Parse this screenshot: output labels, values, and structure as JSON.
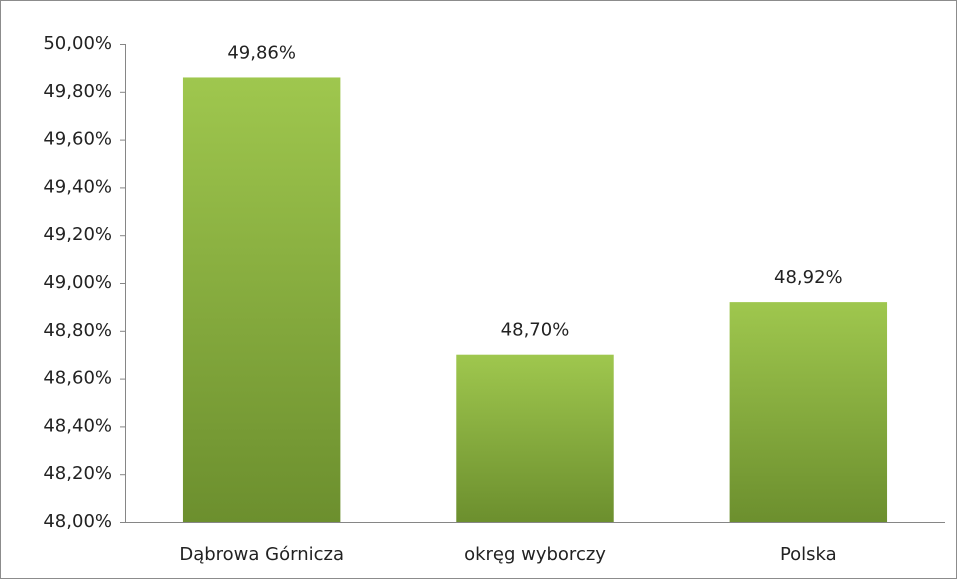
{
  "chart_data": {
    "type": "bar",
    "categories": [
      "Dąbrowa Górnicza",
      "okręg wyborczy",
      "Polska"
    ],
    "values": [
      49.86,
      48.7,
      48.92
    ],
    "value_labels": [
      "49,86%",
      "48,70%",
      "48,92%"
    ],
    "color": [
      "#9fc74e",
      "#6c8f2e"
    ],
    "ylim": [
      48,
      50
    ],
    "yticks": [
      {
        "value": 48,
        "label": "48,00%"
      },
      {
        "value": 48.2,
        "label": "48,20%"
      },
      {
        "value": 48.4,
        "label": "48,40%"
      },
      {
        "value": 48.6,
        "label": "48,60%"
      },
      {
        "value": 48.8,
        "label": "48,80%"
      },
      {
        "value": 49,
        "label": "49,00%"
      },
      {
        "value": 49.2,
        "label": "49,20%"
      },
      {
        "value": 49.4,
        "label": "49,40%"
      },
      {
        "value": 49.6,
        "label": "49,60%"
      },
      {
        "value": 49.8,
        "label": "49,80%"
      },
      {
        "value": 50,
        "label": "50,00%"
      }
    ],
    "grid": false
  }
}
